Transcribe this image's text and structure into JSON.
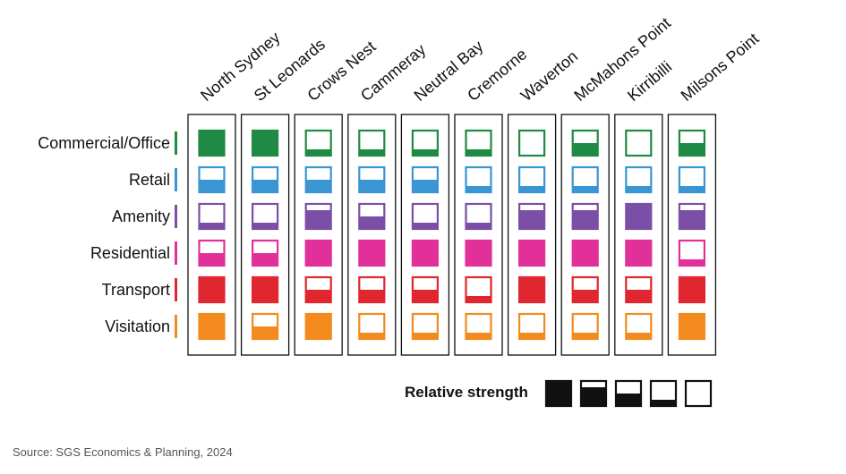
{
  "chart_data": {
    "type": "heatmap",
    "title": "",
    "columns": [
      "North Sydney",
      "St Leonards",
      "Crows Nest",
      "Cammeray",
      "Neutral Bay",
      "Cremorne",
      "Waverton",
      "McMahons Point",
      "Kirribilli",
      "Milsons Point"
    ],
    "rows": [
      {
        "name": "Commercial/Office",
        "color": "#1e8a43",
        "values": [
          4,
          4,
          1,
          1,
          1,
          1,
          0,
          2,
          0,
          2
        ]
      },
      {
        "name": "Retail",
        "color": "#3a95d3",
        "values": [
          2,
          2,
          2,
          2,
          2,
          1,
          1,
          1,
          1,
          1
        ]
      },
      {
        "name": "Amenity",
        "color": "#7b4fa6",
        "values": [
          1,
          1,
          3,
          2,
          1,
          1,
          3,
          3,
          4,
          3
        ]
      },
      {
        "name": "Residential",
        "color": "#e2309a",
        "values": [
          2,
          2,
          4,
          4,
          4,
          4,
          4,
          4,
          4,
          1
        ]
      },
      {
        "name": "Transport",
        "color": "#e0262f",
        "values": [
          4,
          4,
          2,
          2,
          2,
          1,
          4,
          2,
          2,
          4
        ]
      },
      {
        "name": "Visitation",
        "color": "#f28a1e",
        "values": [
          4,
          2,
          4,
          1,
          1,
          1,
          1,
          1,
          1,
          4
        ]
      }
    ],
    "scale": "fill level 0 (empty) to 4 (full)",
    "legend": {
      "label": "Relative strength",
      "levels": [
        4,
        3,
        2,
        1,
        0
      ]
    }
  },
  "source": "Source: SGS Economics & Planning, 2024"
}
